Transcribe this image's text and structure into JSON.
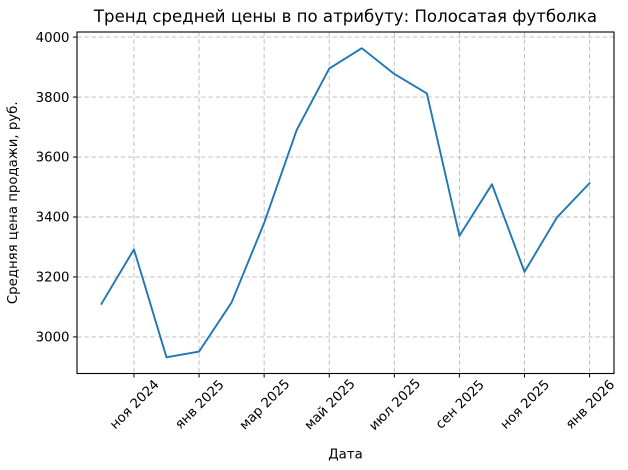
{
  "chart_data": {
    "type": "line",
    "title": "Тренд средней цены в  по атрибуту: Полосатая футболка",
    "xlabel": "Дата",
    "ylabel": "Средняя цена продажи, руб.",
    "grid": "dashed",
    "legend": "none",
    "grid_color": "#b9b9b9",
    "line_color": "#1f77b4",
    "background_color": "#ffffff",
    "yticks": [
      3000,
      3200,
      3400,
      3600,
      3800,
      4000
    ],
    "ylim": [
      2878,
      4017
    ],
    "xlim_month_index": [
      -0.75,
      15.75
    ],
    "xticks": [
      {
        "index": 1,
        "label": "ноя 2024"
      },
      {
        "index": 3,
        "label": "янв 2025"
      },
      {
        "index": 5,
        "label": "мар 2025"
      },
      {
        "index": 7,
        "label": "май 2025"
      },
      {
        "index": 9,
        "label": "июл 2025"
      },
      {
        "index": 11,
        "label": "сен 2025"
      },
      {
        "index": 13,
        "label": "ноя 2025"
      },
      {
        "index": 15,
        "label": "янв 2026"
      }
    ],
    "series": [
      {
        "name": "Средняя цена продажи",
        "x_months": [
          "окт 2024",
          "ноя 2024",
          "дек 2024",
          "янв 2025",
          "фев 2025",
          "мар 2025",
          "апр 2025",
          "май 2025",
          "июн 2025",
          "июл 2025",
          "авг 2025",
          "сен 2025",
          "окт 2025",
          "ноя 2025",
          "дек 2025",
          "янв 2026"
        ],
        "values": [
          3110,
          3292,
          2932,
          2951,
          3115,
          3380,
          3690,
          3895,
          3963,
          3877,
          3812,
          3337,
          3509,
          3217,
          3399,
          3513
        ]
      }
    ]
  }
}
